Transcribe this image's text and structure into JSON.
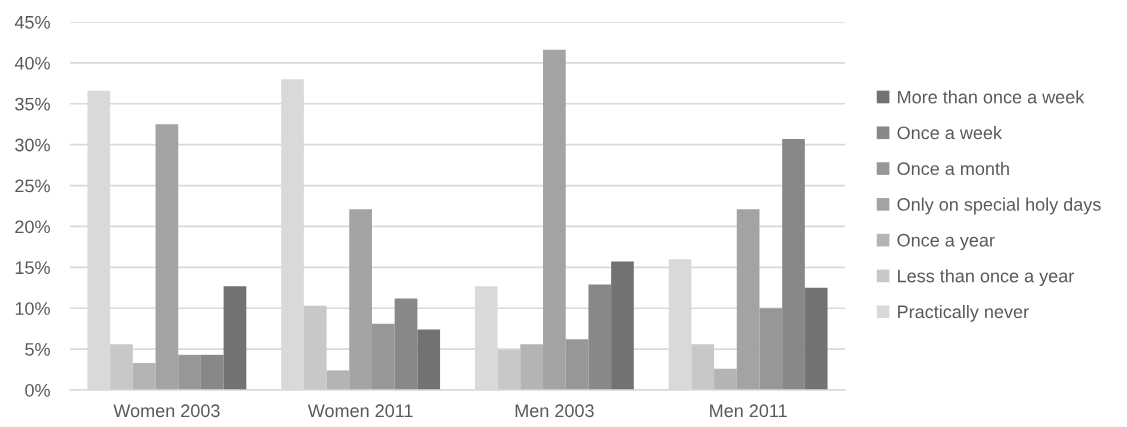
{
  "chart_data": {
    "type": "bar",
    "categories": [
      "Women 2003",
      "Women 2011",
      "Men 2003",
      "Men 2011"
    ],
    "series": [
      {
        "name": "Practically never",
        "color": "#d9d9d9",
        "values": [
          36.6,
          38.0,
          12.7,
          16.0
        ]
      },
      {
        "name": "Less than once a year",
        "color": "#c8c8c8",
        "values": [
          5.6,
          10.3,
          4.9,
          5.6
        ]
      },
      {
        "name": "Once a year",
        "color": "#b4b4b4",
        "values": [
          3.3,
          2.4,
          5.6,
          2.6
        ]
      },
      {
        "name": "Only on special holy days",
        "color": "#a3a3a3",
        "values": [
          32.5,
          22.1,
          41.6,
          22.1
        ]
      },
      {
        "name": "Once a month",
        "color": "#979797",
        "values": [
          4.3,
          8.1,
          6.2,
          10.0
        ]
      },
      {
        "name": "Once a week",
        "color": "#888888",
        "values": [
          4.3,
          11.2,
          12.9,
          30.7
        ]
      },
      {
        "name": "More than once a week",
        "color": "#727272",
        "values": [
          12.7,
          7.4,
          15.7,
          12.5
        ]
      }
    ],
    "ylim": [
      0,
      45
    ],
    "yticks": [
      {
        "value": 0,
        "label": "0%"
      },
      {
        "value": 5,
        "label": "5%"
      },
      {
        "value": 10,
        "label": "10%"
      },
      {
        "value": 15,
        "label": "15%"
      },
      {
        "value": 20,
        "label": "20%"
      },
      {
        "value": 25,
        "label": "25%"
      },
      {
        "value": 30,
        "label": "30%"
      },
      {
        "value": 35,
        "label": "35%"
      },
      {
        "value": 40,
        "label": "40%"
      },
      {
        "value": 45,
        "label": "45%"
      }
    ],
    "grid": "y",
    "legend": "right"
  }
}
